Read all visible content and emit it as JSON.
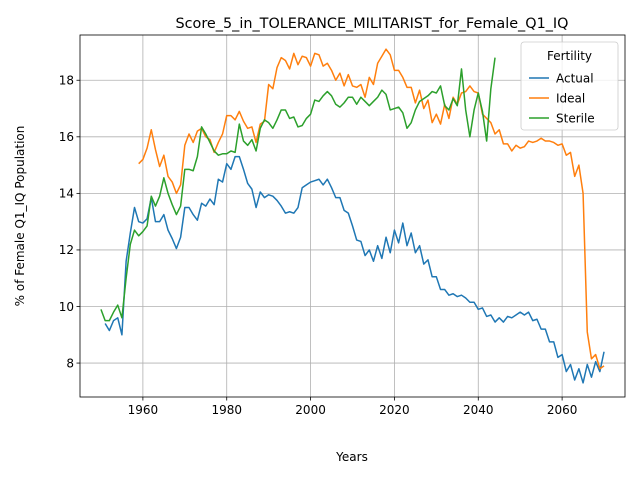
{
  "chart_data": {
    "type": "line",
    "title": "Score_5_in_TOLERANCE_MILITARIST_for_Female_Q1_IQ",
    "xlabel": "Years",
    "ylabel": "% of Female Q1_IQ Population",
    "xlim": [
      1945,
      2075
    ],
    "ylim": [
      6.8,
      19.6
    ],
    "xticks": [
      1960,
      1980,
      2000,
      2020,
      2040,
      2060
    ],
    "yticks": [
      8,
      10,
      12,
      14,
      16,
      18
    ],
    "grid": true,
    "legend": {
      "title": "Fertility",
      "placement": "top-right"
    },
    "series": [
      {
        "name": "Actual",
        "color": "#1f77b4",
        "x": [
          1951,
          1952,
          1953,
          1954,
          1955,
          1956,
          1957,
          1958,
          1959,
          1960,
          1961,
          1962,
          1963,
          1964,
          1965,
          1966,
          1967,
          1968,
          1969,
          1970,
          1971,
          1972,
          1973,
          1974,
          1975,
          1976,
          1977,
          1978,
          1979,
          1980,
          1981,
          1982,
          1983,
          1984,
          1985,
          1986,
          1987,
          1988,
          1989,
          1990,
          1991,
          1992,
          1993,
          1994,
          1995,
          1996,
          1997,
          1998,
          1999,
          2000,
          2001,
          2002,
          2003,
          2004,
          2005,
          2006,
          2007,
          2008,
          2009,
          2010,
          2011,
          2012,
          2013,
          2014,
          2015,
          2016,
          2017,
          2018,
          2019,
          2020,
          2021,
          2022,
          2023,
          2024,
          2025,
          2026,
          2027,
          2028,
          2029,
          2030,
          2031,
          2032,
          2033,
          2034,
          2035,
          2036,
          2037,
          2038,
          2039,
          2040,
          2041,
          2042,
          2043,
          2044,
          2045,
          2046,
          2047,
          2048,
          2049,
          2050,
          2051,
          2052,
          2053,
          2054,
          2055,
          2056,
          2057,
          2058,
          2059,
          2060,
          2061,
          2062,
          2063,
          2064,
          2065,
          2066,
          2067,
          2068,
          2069,
          2070
        ],
        "y": [
          9.4,
          9.15,
          9.5,
          9.6,
          9.0,
          11.6,
          12.6,
          13.5,
          13.0,
          12.95,
          13.1,
          13.85,
          13.0,
          13.0,
          13.25,
          12.7,
          12.4,
          12.05,
          12.45,
          13.5,
          13.5,
          13.25,
          13.05,
          13.65,
          13.55,
          13.8,
          13.6,
          14.5,
          14.4,
          15.05,
          14.85,
          15.3,
          15.3,
          14.85,
          14.35,
          14.15,
          13.5,
          14.05,
          13.85,
          13.95,
          13.9,
          13.75,
          13.55,
          13.3,
          13.35,
          13.3,
          13.5,
          14.2,
          14.3,
          14.4,
          14.45,
          14.5,
          14.3,
          14.5,
          14.2,
          13.85,
          13.85,
          13.4,
          13.3,
          12.85,
          12.35,
          12.3,
          11.8,
          12.0,
          11.6,
          12.15,
          11.7,
          12.45,
          11.9,
          12.7,
          12.25,
          12.95,
          12.15,
          12.6,
          11.9,
          12.15,
          11.5,
          11.65,
          11.05,
          11.05,
          10.6,
          10.6,
          10.4,
          10.45,
          10.35,
          10.4,
          10.3,
          10.15,
          10.15,
          9.9,
          9.95,
          9.65,
          9.7,
          9.45,
          9.6,
          9.45,
          9.65,
          9.6,
          9.7,
          9.8,
          9.7,
          9.8,
          9.5,
          9.55,
          9.2,
          9.2,
          8.75,
          8.75,
          8.2,
          8.3,
          7.7,
          7.95,
          7.4,
          7.8,
          7.3,
          7.95,
          7.5,
          8.05,
          7.7,
          8.4
        ]
      },
      {
        "name": "Ideal",
        "color": "#ff7f0e",
        "x": [
          1959,
          1960,
          1961,
          1962,
          1963,
          1964,
          1965,
          1966,
          1967,
          1968,
          1969,
          1970,
          1971,
          1972,
          1973,
          1974,
          1975,
          1976,
          1977,
          1978,
          1979,
          1980,
          1981,
          1982,
          1983,
          1984,
          1985,
          1986,
          1987,
          1988,
          1989,
          1990,
          1991,
          1992,
          1993,
          1994,
          1995,
          1996,
          1997,
          1998,
          1999,
          2000,
          2001,
          2002,
          2003,
          2004,
          2005,
          2006,
          2007,
          2008,
          2009,
          2010,
          2011,
          2012,
          2013,
          2014,
          2015,
          2016,
          2017,
          2018,
          2019,
          2020,
          2021,
          2022,
          2023,
          2024,
          2025,
          2026,
          2027,
          2028,
          2029,
          2030,
          2031,
          2032,
          2033,
          2034,
          2035,
          2036,
          2037,
          2038,
          2039,
          2040,
          2041,
          2042,
          2043,
          2044,
          2045,
          2046,
          2047,
          2048,
          2049,
          2050,
          2051,
          2052,
          2053,
          2054,
          2055,
          2056,
          2057,
          2058,
          2059,
          2060,
          2061,
          2062,
          2063,
          2064,
          2065,
          2066,
          2067,
          2068,
          2069,
          2070
        ],
        "y": [
          15.05,
          15.2,
          15.6,
          16.25,
          15.55,
          14.95,
          15.35,
          14.6,
          14.4,
          14.0,
          14.3,
          15.7,
          16.1,
          15.8,
          16.2,
          16.3,
          16.0,
          15.9,
          15.45,
          15.8,
          16.1,
          16.75,
          16.75,
          16.6,
          16.9,
          16.55,
          16.3,
          16.35,
          15.8,
          16.45,
          16.55,
          17.85,
          17.7,
          18.45,
          18.8,
          18.7,
          18.4,
          18.95,
          18.55,
          18.85,
          18.8,
          18.5,
          18.95,
          18.9,
          18.5,
          18.6,
          18.35,
          18.0,
          18.25,
          17.8,
          18.2,
          17.8,
          17.75,
          17.85,
          17.4,
          18.1,
          17.85,
          18.6,
          18.85,
          19.1,
          18.9,
          18.35,
          18.35,
          18.1,
          17.75,
          17.75,
          17.2,
          17.65,
          17.0,
          17.3,
          16.5,
          16.8,
          16.45,
          17.15,
          16.65,
          17.4,
          17.15,
          17.55,
          17.6,
          17.8,
          17.6,
          17.55,
          16.8,
          16.65,
          16.5,
          16.1,
          16.25,
          15.75,
          15.75,
          15.5,
          15.7,
          15.6,
          15.65,
          15.85,
          15.8,
          15.85,
          15.95,
          15.85,
          15.85,
          15.8,
          15.7,
          15.75,
          15.35,
          15.45,
          14.6,
          15.0,
          14.0,
          9.1,
          8.15,
          8.3,
          7.8,
          7.9
        ]
      },
      {
        "name": "Sterile",
        "color": "#2ca02c",
        "x": [
          1950,
          1951,
          1952,
          1953,
          1954,
          1955,
          1956,
          1957,
          1958,
          1959,
          1960,
          1961,
          1962,
          1963,
          1964,
          1965,
          1966,
          1967,
          1968,
          1969,
          1970,
          1971,
          1972,
          1973,
          1974,
          1975,
          1976,
          1977,
          1978,
          1979,
          1980,
          1981,
          1982,
          1983,
          1984,
          1985,
          1986,
          1987,
          1988,
          1989,
          1990,
          1991,
          1992,
          1993,
          1994,
          1995,
          1996,
          1997,
          1998,
          1999,
          2000,
          2001,
          2002,
          2003,
          2004,
          2005,
          2006,
          2007,
          2008,
          2009,
          2010,
          2011,
          2012,
          2013,
          2014,
          2015,
          2016,
          2017,
          2018,
          2019,
          2020,
          2021,
          2022,
          2023,
          2024,
          2025,
          2026,
          2027,
          2028,
          2029,
          2030,
          2031,
          2032,
          2033,
          2034,
          2035,
          2036,
          2037,
          2038,
          2039,
          2040,
          2041,
          2042,
          2043,
          2044
        ],
        "y": [
          9.9,
          9.5,
          9.5,
          9.8,
          10.05,
          9.6,
          11.0,
          12.2,
          12.7,
          12.5,
          12.65,
          12.85,
          13.9,
          13.55,
          13.9,
          14.55,
          14.0,
          13.6,
          13.25,
          13.55,
          14.85,
          14.85,
          14.8,
          15.3,
          16.35,
          16.1,
          15.8,
          15.5,
          15.35,
          15.4,
          15.4,
          15.5,
          15.45,
          16.45,
          15.85,
          15.7,
          15.9,
          15.5,
          16.3,
          16.6,
          16.5,
          16.3,
          16.6,
          16.95,
          16.95,
          16.65,
          16.7,
          16.35,
          16.4,
          16.65,
          16.8,
          17.3,
          17.25,
          17.45,
          17.6,
          17.45,
          17.15,
          17.05,
          17.2,
          17.4,
          17.4,
          17.15,
          17.4,
          17.25,
          17.1,
          17.25,
          17.4,
          17.65,
          17.5,
          16.95,
          17.0,
          17.05,
          16.85,
          16.3,
          16.5,
          16.95,
          17.25,
          17.35,
          17.45,
          17.6,
          17.55,
          17.8,
          17.1,
          16.95,
          17.35,
          17.1,
          18.4,
          16.95,
          16.0,
          16.95,
          17.55,
          16.9,
          15.85,
          17.7,
          18.8
        ]
      }
    ]
  }
}
